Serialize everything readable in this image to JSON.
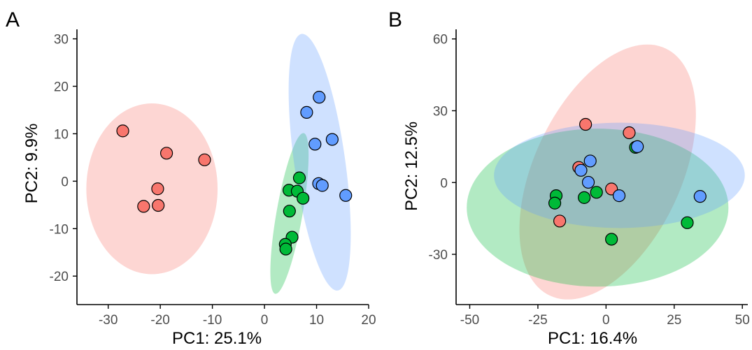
{
  "chart_data": [
    {
      "panel_label": "A",
      "type": "scatter",
      "xlabel": "PC1: 25.1%",
      "ylabel": "PC2: 9.9%",
      "xlim": [
        -36,
        20
      ],
      "ylim": [
        -26,
        32
      ],
      "xticks": [
        -30,
        -20,
        -10,
        0,
        10,
        20
      ],
      "yticks": [
        -20,
        -10,
        0,
        10,
        20,
        30
      ],
      "grid": false,
      "legend": "none",
      "series": [
        {
          "color": "#F8766D",
          "ellipse_color": "#F8766D",
          "points": [
            [
              -27.2,
              10.6
            ],
            [
              -18.8,
              5.9
            ],
            [
              -11.5,
              4.5
            ],
            [
              -20.5,
              -1.6
            ],
            [
              -23.2,
              -5.3
            ],
            [
              -20.4,
              -5.1
            ]
          ],
          "ellipse": {
            "cx": -21.6,
            "cy": -1.6,
            "rx": 12.6,
            "ry": 18.0,
            "angle": 0
          }
        },
        {
          "color": "#00BA38",
          "ellipse_color": "#00BA38",
          "points": [
            [
              6.7,
              0.7
            ],
            [
              4.7,
              -1.9
            ],
            [
              6.3,
              -2.1
            ],
            [
              7.4,
              -3.6
            ],
            [
              4.8,
              -6.3
            ],
            [
              5.3,
              -11.8
            ],
            [
              4.0,
              -13.3
            ],
            [
              4.1,
              -14.3
            ]
          ],
          "ellipse": {
            "cx": 4.8,
            "cy": -6.8,
            "rx": 2.5,
            "ry": 17.2,
            "angle": 10
          }
        },
        {
          "color": "#619CFF",
          "ellipse_color": "#619CFF",
          "points": [
            [
              10.5,
              17.7
            ],
            [
              8.1,
              14.5
            ],
            [
              13.0,
              8.8
            ],
            [
              9.7,
              7.8
            ],
            [
              10.4,
              -0.5
            ],
            [
              11.1,
              -0.9
            ],
            [
              15.6,
              -3.0
            ]
          ],
          "ellipse": {
            "cx": 10.6,
            "cy": 4.0,
            "rx": 4.9,
            "ry": 27.3,
            "angle": -8
          }
        }
      ]
    },
    {
      "panel_label": "B",
      "type": "scatter",
      "xlabel": "PC1: 16.4%",
      "ylabel": "PC2: 12.5%",
      "xlim": [
        -55,
        52
      ],
      "ylim": [
        -51,
        64
      ],
      "xticks": [
        -50,
        -25,
        0,
        25,
        50
      ],
      "yticks": [
        -30,
        0,
        30,
        60
      ],
      "grid": false,
      "legend": "none",
      "series": [
        {
          "color": "#F8766D",
          "ellipse_color": "#F8766D",
          "points": [
            [
              -7.5,
              24.3
            ],
            [
              8.5,
              20.8
            ],
            [
              -10.0,
              6.3
            ],
            [
              2.0,
              -2.7
            ],
            [
              -17.0,
              -16.1
            ]
          ],
          "ellipse": {
            "cx": 0.6,
            "cy": 4.4,
            "rx": 27.0,
            "ry": 57.0,
            "angle": 25
          }
        },
        {
          "color": "#00BA38",
          "ellipse_color": "#00BA38",
          "points": [
            [
              10.8,
              14.7
            ],
            [
              -18.3,
              -5.5
            ],
            [
              -18.8,
              -8.6
            ],
            [
              -3.5,
              -4.1
            ],
            [
              -8.0,
              -6.3
            ],
            [
              29.8,
              -16.8
            ],
            [
              2.0,
              -23.7
            ]
          ],
          "ellipse": {
            "cx": -3.1,
            "cy": -10.5,
            "rx": 48.0,
            "ry": 33.0,
            "angle": 0
          }
        },
        {
          "color": "#619CFF",
          "ellipse_color": "#619CFF",
          "points": [
            [
              11.5,
              15.0
            ],
            [
              -5.8,
              9.0
            ],
            [
              -9.2,
              5.1
            ],
            [
              -6.5,
              0.1
            ],
            [
              4.8,
              -5.5
            ],
            [
              34.5,
              -5.8
            ]
          ],
          "ellipse": {
            "cx": 4.9,
            "cy": 3.0,
            "rx": 46.0,
            "ry": 22.0,
            "angle": 0
          }
        }
      ]
    }
  ]
}
